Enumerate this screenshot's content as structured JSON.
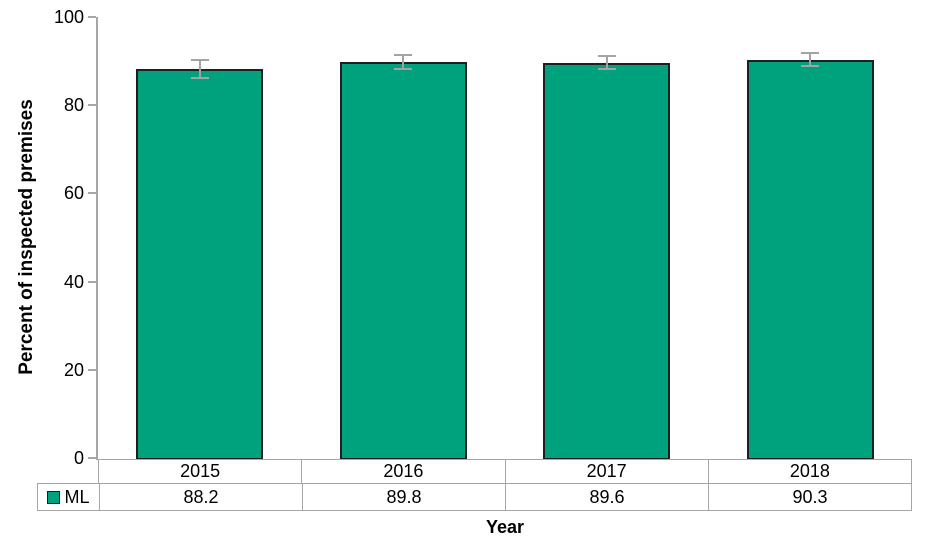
{
  "chart_data": {
    "type": "bar",
    "title": "",
    "xlabel": "Year",
    "ylabel": "Percent of inspected premises",
    "categories": [
      "2015",
      "2016",
      "2017",
      "2018"
    ],
    "series": [
      {
        "name": "ML",
        "values": [
          88.2,
          89.8,
          89.6,
          90.3
        ],
        "errors": [
          2.0,
          1.5,
          1.5,
          1.5
        ],
        "color": "#00A17D"
      }
    ],
    "ylim": [
      0,
      100
    ],
    "yticks": [
      0,
      20,
      40,
      60,
      80,
      100
    ],
    "grid": false,
    "error_bars": true,
    "legend_position": "table-left",
    "data_table": true
  },
  "colors": {
    "bar_fill": "#00A17D",
    "bar_border": "#1F1F1F",
    "error_bar": "#A3A3A3",
    "axis_line": "#A6A6A6",
    "table_border": "#A6A6A6",
    "text": "#000000",
    "background": "#FFFFFF"
  }
}
